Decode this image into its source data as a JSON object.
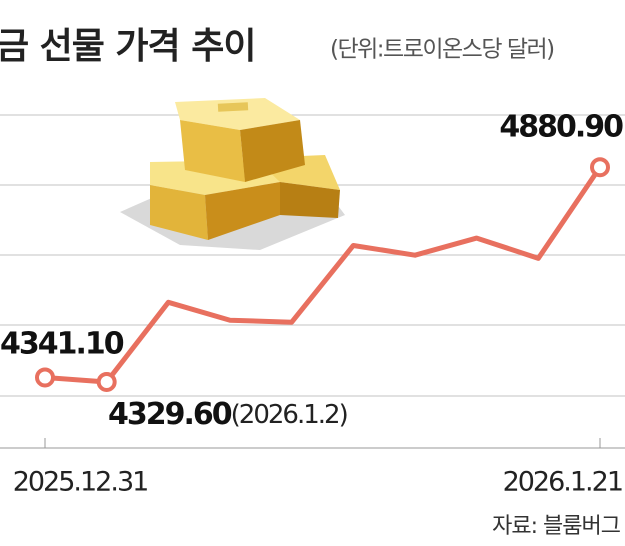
{
  "chart_data": {
    "type": "line",
    "title": "금 선물 가격 추이",
    "subtitle": "(단위:트로이온스당 달러)",
    "categories": [
      "2025.12.31",
      null,
      null,
      null,
      null,
      null,
      null,
      null,
      null,
      "2026.1.21"
    ],
    "values": [
      4341.1,
      4329.6,
      4534,
      4488,
      4483,
      4680,
      4655,
      4699,
      4647,
      4880.9
    ],
    "value_labels": [
      "4341.10",
      "4329.60",
      null,
      null,
      null,
      null,
      null,
      null,
      null,
      "4880.90"
    ],
    "annotation": "(2026.1.2)",
    "color": "#e8705f",
    "ylim": [
      4160,
      5015
    ],
    "source": "자료: 블룸버그"
  }
}
